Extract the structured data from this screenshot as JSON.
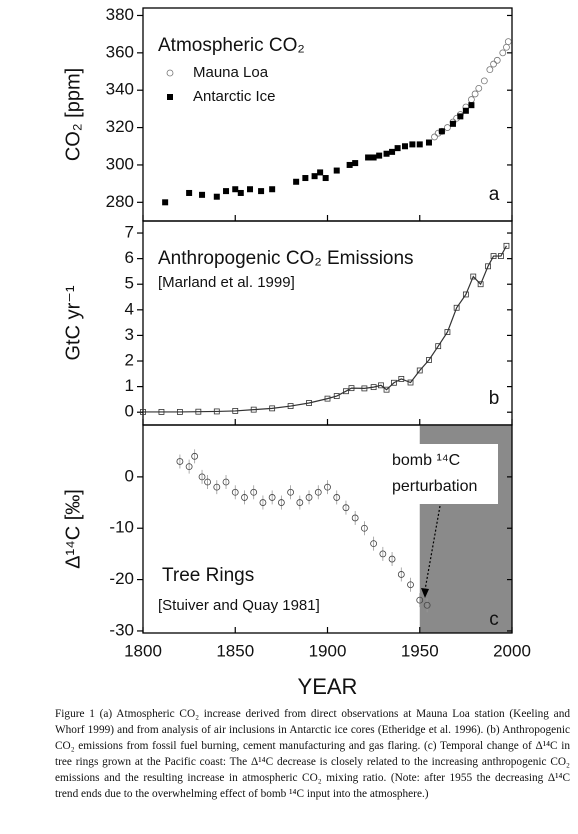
{
  "chart_data": [
    {
      "type": "scatter",
      "title": "Atmospheric CO₂",
      "ylabel": "CO₂ [ppm]",
      "panel_label": "a",
      "xlim": [
        1800,
        2000
      ],
      "xticks": [
        1800,
        1850,
        1900,
        1950,
        2000
      ],
      "ylim": [
        270,
        384
      ],
      "yticks": [
        280,
        300,
        320,
        340,
        360,
        380
      ],
      "legend": "top-left",
      "series": [
        {
          "name": "Mauna Loa",
          "color": "#777777",
          "marker": "circle-open",
          "x": [
            1958,
            1960,
            1962,
            1965,
            1968,
            1970,
            1972,
            1975,
            1978,
            1980,
            1982,
            1985,
            1988,
            1990,
            1992,
            1995,
            1997,
            1998
          ],
          "values": [
            315,
            317,
            318,
            320,
            323,
            325,
            327,
            331,
            335,
            338,
            341,
            345,
            351,
            354,
            356,
            360,
            363,
            366
          ]
        },
        {
          "name": "Antarctic Ice",
          "color": "#000000",
          "marker": "square",
          "x": [
            1812,
            1825,
            1832,
            1840,
            1845,
            1850,
            1853,
            1858,
            1864,
            1870,
            1883,
            1888,
            1893,
            1896,
            1899,
            1905,
            1912,
            1915,
            1922,
            1925,
            1928,
            1932,
            1935,
            1938,
            1942,
            1946,
            1950,
            1955,
            1962,
            1968,
            1972,
            1975,
            1978
          ],
          "values": [
            280,
            285,
            284,
            283,
            286,
            287,
            285,
            287,
            286,
            287,
            291,
            293,
            294,
            296,
            293,
            297,
            300,
            301,
            304,
            304,
            305,
            306,
            307,
            309,
            310,
            311,
            311,
            312,
            318,
            322,
            326,
            329,
            332
          ]
        }
      ]
    },
    {
      "type": "scatter",
      "title": "Anthropogenic CO₂ Emissions",
      "subtitle": "[Marland et al. 1999]",
      "ylabel": "GtC yr⁻¹",
      "panel_label": "b",
      "xlim": [
        1800,
        2000
      ],
      "xticks": [
        1800,
        1850,
        1900,
        1950,
        2000
      ],
      "ylim": [
        -0.5,
        7.47
      ],
      "yticks": [
        0,
        1,
        2,
        3,
        4,
        5,
        6,
        7
      ],
      "series": [
        {
          "name": "Emissions",
          "color": "#333333",
          "marker": "square-open",
          "x": [
            1800,
            1810,
            1820,
            1830,
            1840,
            1850,
            1860,
            1870,
            1880,
            1890,
            1900,
            1905,
            1910,
            1913,
            1920,
            1925,
            1929,
            1932,
            1936,
            1940,
            1945,
            1950,
            1955,
            1960,
            1965,
            1970,
            1975,
            1979,
            1983,
            1987,
            1990,
            1994,
            1997
          ],
          "values": [
            0.01,
            0.01,
            0.01,
            0.02,
            0.03,
            0.05,
            0.1,
            0.15,
            0.24,
            0.36,
            0.53,
            0.63,
            0.82,
            0.94,
            0.93,
            0.98,
            1.05,
            0.88,
            1.15,
            1.3,
            1.16,
            1.63,
            2.04,
            2.58,
            3.13,
            4.08,
            4.6,
            5.3,
            5.0,
            5.7,
            6.1,
            6.1,
            6.5
          ]
        }
      ]
    },
    {
      "type": "scatter",
      "title": "Tree Rings",
      "subtitle": "[Stuiver and Quay 1981]",
      "ylabel": "Δ¹⁴C [‰]",
      "panel_label": "c",
      "xlabel": "YEAR",
      "annotations": [
        "bomb ¹⁴C",
        "perturbation"
      ],
      "shaded_xrange": [
        1950,
        2000
      ],
      "xlim": [
        1800,
        2000
      ],
      "xticks": [
        1800,
        1850,
        1900,
        1950,
        2000
      ],
      "ylim": [
        -30.4,
        10.1
      ],
      "yticks": [
        0,
        -10,
        -20,
        -30
      ],
      "series": [
        {
          "name": "Tree Rings",
          "color": "#444444",
          "marker": "circle-open",
          "x": [
            1820,
            1825,
            1828,
            1832,
            1835,
            1840,
            1845,
            1850,
            1855,
            1860,
            1865,
            1870,
            1875,
            1880,
            1885,
            1890,
            1895,
            1900,
            1905,
            1910,
            1915,
            1920,
            1925,
            1930,
            1935,
            1940,
            1945,
            1950,
            1954
          ],
          "values": [
            3,
            2,
            4,
            0,
            -1,
            -2,
            -1,
            -3,
            -4,
            -3,
            -5,
            -4,
            -5,
            -3,
            -5,
            -4,
            -3,
            -2,
            -4,
            -6,
            -8,
            -10,
            -13,
            -15,
            -16,
            -19,
            -21,
            -24,
            -25
          ]
        }
      ]
    }
  ],
  "caption": "Figure 1  (a) Atmospheric CO₂ increase derived from direct observations at Mauna Loa station (Keeling and Whorf 1999) and from analysis of air inclusions in Antarctic ice cores (Etheridge et al. 1996). (b) Anthropogenic CO₂ emissions from fossil fuel burning, cement manufacturing and gas flaring. (c) Temporal change of Δ¹⁴C in tree rings grown at the Pacific coast: The Δ¹⁴C decrease is closely related to the increasing anthropogenic CO₂ emissions and the resulting increase in atmospheric CO₂ mixing ratio. (Note: after 1955 the decreasing Δ¹⁴C trend ends due to the overwhelming effect of bomb ¹⁴C input into the atmosphere.)"
}
